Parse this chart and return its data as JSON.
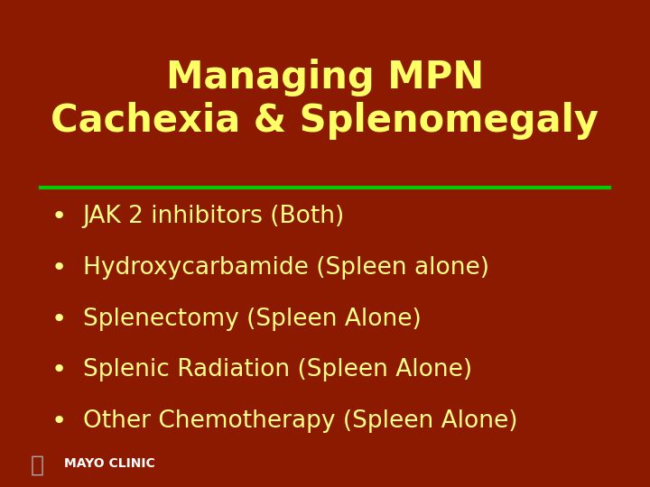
{
  "title_line1": "Managing MPN",
  "title_line2": "Cachexia & Splenomegaly",
  "title_color": "#FFFF66",
  "background_color": "#8B1A00",
  "divider_color": "#00CC00",
  "bullet_color": "#FFFF88",
  "bullet_items": [
    "JAK 2 inhibitors (Both)",
    "Hydroxycarbamide (Spleen alone)",
    "Splenectomy (Spleen Alone)",
    "Splenic Radiation (Spleen Alone)",
    "Other Chemotherapy (Spleen Alone)"
  ],
  "title_fontsize": 30,
  "bullet_fontsize": 19,
  "mayo_text": "MAYO CLINIC",
  "mayo_color": "#FFFFFF",
  "mayo_fontsize": 10
}
